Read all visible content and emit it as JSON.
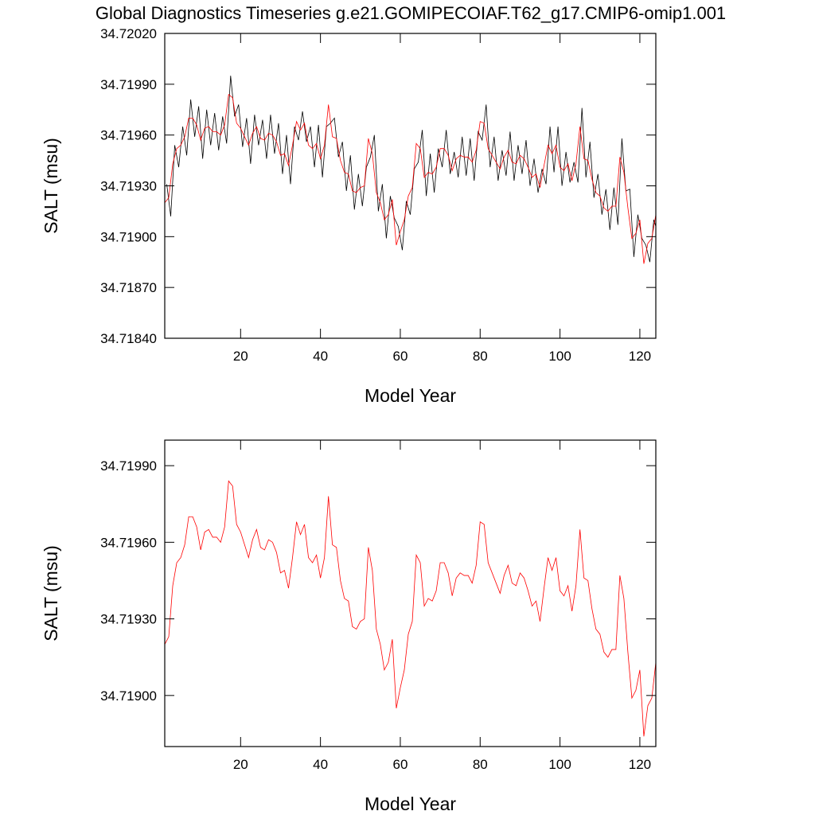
{
  "chart_data": [
    {
      "type": "line",
      "title": "Global Diagnostics Timeseries g.e21.GOMIPECOIAF.T62_g17.CMIP6-omip1.001",
      "x_label": "Model Year",
      "y_label": "SALT (msu)",
      "xlim": [
        1,
        124
      ],
      "xticks": [
        20,
        40,
        60,
        80,
        100,
        120
      ],
      "ylim": [
        34.7184,
        34.7202
      ],
      "yticks": [
        {
          "value": 34.7184,
          "label": "34.71840"
        },
        {
          "value": 34.7187,
          "label": "34.71870"
        },
        {
          "value": 34.719,
          "label": "34.71900"
        },
        {
          "value": 34.7193,
          "label": "34.71930"
        },
        {
          "value": 34.7196,
          "label": "34.71960"
        },
        {
          "value": 34.7199,
          "label": "34.71990"
        },
        {
          "value": 34.7202,
          "label": "34.72020"
        }
      ],
      "series": [
        {
          "color": "#000000",
          "x": [
            1.5,
            2.5,
            3.5,
            4.5,
            5.5,
            6.5,
            7.5,
            8.5,
            9.5,
            10.5,
            11.5,
            12.5,
            13.5,
            14.5,
            15.5,
            16.5,
            17.5,
            18.5,
            19.5,
            20.5,
            21.5,
            22.5,
            23.5,
            24.5,
            25.5,
            26.5,
            27.5,
            28.5,
            29.5,
            30.5,
            31.5,
            32.5,
            33.5,
            34.5,
            35.5,
            36.5,
            37.5,
            38.5,
            39.5,
            40.5,
            41.5,
            42.5,
            43.5,
            44.5,
            45.5,
            46.5,
            47.5,
            48.5,
            49.5,
            50.5,
            51.5,
            52.5,
            53.5,
            54.5,
            55.5,
            56.5,
            57.5,
            58.5,
            59.5,
            60.5,
            61.5,
            62.5,
            63.5,
            64.5,
            65.5,
            66.5,
            67.5,
            68.5,
            69.5,
            70.5,
            71.5,
            72.5,
            73.5,
            74.5,
            75.5,
            76.5,
            77.5,
            78.5,
            79.5,
            80.5,
            81.5,
            82.5,
            83.5,
            84.5,
            85.5,
            86.5,
            87.5,
            88.5,
            89.5,
            90.5,
            91.5,
            92.5,
            93.5,
            94.5,
            95.5,
            96.5,
            97.5,
            98.5,
            99.5,
            100.5,
            101.5,
            102.5,
            103.5,
            104.5,
            105.5,
            106.5,
            107.5,
            108.5,
            109.5,
            110.5,
            111.5,
            112.5,
            113.5,
            114.5,
            115.5,
            116.5,
            117.5,
            118.5,
            119.5,
            120.5,
            121.5,
            122.5,
            123.5,
            124.5
          ],
          "values": [
            34.71931,
            34.71912,
            34.71954,
            34.71941,
            34.71965,
            34.71948,
            34.71981,
            34.71959,
            34.71977,
            34.71946,
            34.71975,
            34.71954,
            34.71973,
            34.71951,
            34.71971,
            34.71955,
            34.71995,
            34.71971,
            34.71978,
            34.71953,
            34.7197,
            34.71943,
            34.71972,
            34.71954,
            34.71969,
            34.71946,
            34.71972,
            34.71949,
            34.71967,
            34.71937,
            34.7196,
            34.71931,
            34.71965,
            34.71957,
            34.71974,
            34.71956,
            34.71965,
            34.71941,
            34.71966,
            34.71935,
            34.71965,
            34.71967,
            34.7197,
            34.71947,
            34.71956,
            34.71927,
            34.71948,
            34.71916,
            34.71937,
            34.71918,
            34.71941,
            34.71947,
            34.7196,
            34.71915,
            34.71931,
            34.71899,
            34.71924,
            34.71911,
            34.71906,
            34.71892,
            34.71921,
            34.71913,
            34.7194,
            34.71944,
            34.71963,
            34.71924,
            34.71949,
            34.71926,
            34.71952,
            34.71941,
            34.71963,
            34.71937,
            34.7195,
            34.71935,
            34.71959,
            34.71936,
            34.71958,
            34.71933,
            34.71962,
            34.71957,
            34.71978,
            34.71941,
            34.71959,
            34.71933,
            34.71951,
            34.71936,
            34.71962,
            34.71933,
            34.71954,
            34.71937,
            34.71957,
            34.7193,
            34.71946,
            34.71926,
            34.7194,
            34.71931,
            34.71965,
            34.71938,
            34.71965,
            34.7193,
            34.7195,
            34.71932,
            34.71944,
            34.71932,
            34.71976,
            34.71935,
            34.71956,
            34.71923,
            34.71937,
            34.71913,
            34.71928,
            34.71904,
            34.71929,
            34.71907,
            34.71958,
            34.71927,
            34.71928,
            34.71888,
            34.71913,
            34.71899,
            34.71895,
            34.71885,
            34.7191,
            34.71902
          ]
        },
        {
          "color": "#ff0000",
          "x": [
            1,
            2,
            3,
            4,
            5,
            6,
            7,
            8,
            9,
            10,
            11,
            12,
            13,
            14,
            15,
            16,
            17,
            18,
            19,
            20,
            21,
            22,
            23,
            24,
            25,
            26,
            27,
            28,
            29,
            30,
            31,
            32,
            33,
            34,
            35,
            36,
            37,
            38,
            39,
            40,
            41,
            42,
            43,
            44,
            45,
            46,
            47,
            48,
            49,
            50,
            51,
            52,
            53,
            54,
            55,
            56,
            57,
            58,
            59,
            60,
            61,
            62,
            63,
            64,
            65,
            66,
            67,
            68,
            69,
            70,
            71,
            72,
            73,
            74,
            75,
            76,
            77,
            78,
            79,
            80,
            81,
            82,
            83,
            84,
            85,
            86,
            87,
            88,
            89,
            90,
            91,
            92,
            93,
            94,
            95,
            96,
            97,
            98,
            99,
            100,
            101,
            102,
            103,
            104,
            105,
            106,
            107,
            108,
            109,
            110,
            111,
            112,
            113,
            114,
            115,
            116,
            117,
            118,
            119,
            120,
            121,
            122,
            123,
            124
          ],
          "values": [
            34.7192,
            34.71923,
            34.71943,
            34.71952,
            34.71954,
            34.71959,
            34.7197,
            34.7197,
            34.71966,
            34.71957,
            34.71964,
            34.71965,
            34.71962,
            34.71962,
            34.7196,
            34.71966,
            34.71984,
            34.71982,
            34.71967,
            34.71964,
            34.71959,
            34.71954,
            34.71961,
            34.71965,
            34.71958,
            34.71957,
            34.71961,
            34.7196,
            34.71956,
            34.71948,
            34.71949,
            34.71942,
            34.71954,
            34.71968,
            34.71963,
            34.71967,
            34.71954,
            34.71952,
            34.71955,
            34.71946,
            34.71954,
            34.71978,
            34.71959,
            34.71958,
            34.71945,
            34.71938,
            34.71937,
            34.71927,
            34.71926,
            34.71929,
            34.7193,
            34.71958,
            34.71949,
            34.71926,
            34.7192,
            34.7191,
            34.71913,
            34.71922,
            34.71895,
            34.71903,
            34.7191,
            34.71924,
            34.71929,
            34.71955,
            34.71952,
            34.71935,
            34.71938,
            34.71937,
            34.71941,
            34.71952,
            34.71952,
            34.71948,
            34.71939,
            34.71946,
            34.71948,
            34.71947,
            34.71947,
            34.71944,
            34.71951,
            34.71968,
            34.71967,
            34.71952,
            34.71948,
            34.71944,
            34.7194,
            34.71947,
            34.71951,
            34.71944,
            34.71943,
            34.71948,
            34.71946,
            34.71941,
            34.71935,
            34.71937,
            34.71929,
            34.71942,
            34.71954,
            34.71949,
            34.71954,
            34.71941,
            34.71939,
            34.71943,
            34.71933,
            34.71943,
            34.71965,
            34.71946,
            34.71945,
            34.71934,
            34.71926,
            34.71924,
            34.71917,
            34.71915,
            34.71918,
            34.71918,
            34.71947,
            34.71938,
            34.71917,
            34.71899,
            34.71902,
            34.7191,
            34.71884,
            34.71896,
            34.71899,
            34.71913
          ]
        }
      ]
    },
    {
      "type": "line",
      "x_label": "Model Year",
      "y_label": "SALT (msu)",
      "xlim": [
        1,
        124
      ],
      "xticks": [
        20,
        40,
        60,
        80,
        100,
        120
      ],
      "ylim": [
        34.7188,
        34.72
      ],
      "yticks": [
        {
          "value": 34.719,
          "label": "34.71900"
        },
        {
          "value": 34.7193,
          "label": "34.71930"
        },
        {
          "value": 34.7196,
          "label": "34.71960"
        },
        {
          "value": 34.7199,
          "label": "34.71990"
        }
      ],
      "series": [
        {
          "color": "#ff0000",
          "x": [
            1,
            2,
            3,
            4,
            5,
            6,
            7,
            8,
            9,
            10,
            11,
            12,
            13,
            14,
            15,
            16,
            17,
            18,
            19,
            20,
            21,
            22,
            23,
            24,
            25,
            26,
            27,
            28,
            29,
            30,
            31,
            32,
            33,
            34,
            35,
            36,
            37,
            38,
            39,
            40,
            41,
            42,
            43,
            44,
            45,
            46,
            47,
            48,
            49,
            50,
            51,
            52,
            53,
            54,
            55,
            56,
            57,
            58,
            59,
            60,
            61,
            62,
            63,
            64,
            65,
            66,
            67,
            68,
            69,
            70,
            71,
            72,
            73,
            74,
            75,
            76,
            77,
            78,
            79,
            80,
            81,
            82,
            83,
            84,
            85,
            86,
            87,
            88,
            89,
            90,
            91,
            92,
            93,
            94,
            95,
            96,
            97,
            98,
            99,
            100,
            101,
            102,
            103,
            104,
            105,
            106,
            107,
            108,
            109,
            110,
            111,
            112,
            113,
            114,
            115,
            116,
            117,
            118,
            119,
            120,
            121,
            122,
            123,
            124
          ],
          "values": [
            34.7192,
            34.71923,
            34.71943,
            34.71952,
            34.71954,
            34.71959,
            34.7197,
            34.7197,
            34.71966,
            34.71957,
            34.71964,
            34.71965,
            34.71962,
            34.71962,
            34.7196,
            34.71966,
            34.71984,
            34.71982,
            34.71967,
            34.71964,
            34.71959,
            34.71954,
            34.71961,
            34.71965,
            34.71958,
            34.71957,
            34.71961,
            34.7196,
            34.71956,
            34.71948,
            34.71949,
            34.71942,
            34.71954,
            34.71968,
            34.71963,
            34.71967,
            34.71954,
            34.71952,
            34.71955,
            34.71946,
            34.71954,
            34.71978,
            34.71959,
            34.71958,
            34.71945,
            34.71938,
            34.71937,
            34.71927,
            34.71926,
            34.71929,
            34.7193,
            34.71958,
            34.71949,
            34.71926,
            34.7192,
            34.7191,
            34.71913,
            34.71922,
            34.71895,
            34.71903,
            34.7191,
            34.71924,
            34.71929,
            34.71955,
            34.71952,
            34.71935,
            34.71938,
            34.71937,
            34.71941,
            34.71952,
            34.71952,
            34.71948,
            34.71939,
            34.71946,
            34.71948,
            34.71947,
            34.71947,
            34.71944,
            34.71951,
            34.71968,
            34.71967,
            34.71952,
            34.71948,
            34.71944,
            34.7194,
            34.71947,
            34.71951,
            34.71944,
            34.71943,
            34.71948,
            34.71946,
            34.71941,
            34.71935,
            34.71937,
            34.71929,
            34.71942,
            34.71954,
            34.71949,
            34.71954,
            34.71941,
            34.71939,
            34.71943,
            34.71933,
            34.71943,
            34.71965,
            34.71946,
            34.71945,
            34.71934,
            34.71926,
            34.71924,
            34.71917,
            34.71915,
            34.71918,
            34.71918,
            34.71947,
            34.71938,
            34.71917,
            34.71899,
            34.71902,
            34.7191,
            34.71884,
            34.71896,
            34.71899,
            34.71913
          ]
        }
      ]
    }
  ]
}
